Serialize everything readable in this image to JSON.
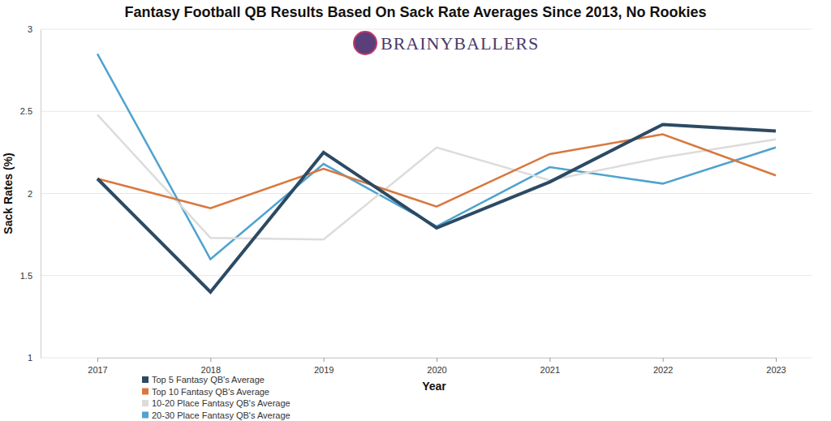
{
  "chart_data": {
    "type": "line",
    "title": "Fantasy Football QB Results Based On Sack Rate Averages Since 2013, No Rookies",
    "subtitle": "BRAINYBALLERS",
    "x_label": "Year",
    "y_label": "Sack Rates (%)",
    "categories": [
      "2017",
      "2018",
      "2019",
      "2020",
      "2021",
      "2022",
      "2023"
    ],
    "series": [
      {
        "name": "Top 5 Fantasy QB's Average",
        "color": "#2c4a63",
        "values": [
          2.09,
          1.4,
          2.25,
          1.79,
          2.07,
          2.42,
          2.38
        ]
      },
      {
        "name": "Top 10 Fantasy QB's Average",
        "color": "#d9773f",
        "values": [
          2.09,
          1.91,
          2.15,
          1.92,
          2.24,
          2.36,
          2.11
        ]
      },
      {
        "name": "10-20 Place Fantasy QB's Average",
        "color": "#dcdcdc",
        "values": [
          2.48,
          1.73,
          1.72,
          2.28,
          2.08,
          2.22,
          2.33
        ]
      },
      {
        "name": "20-30 Place Fantasy QB's Average",
        "color": "#4ea3cf",
        "values": [
          2.85,
          1.6,
          2.18,
          1.8,
          2.16,
          2.06,
          2.28
        ]
      }
    ],
    "ylim": [
      1,
      3
    ],
    "yticks": [
      1,
      1.5,
      2,
      2.5,
      3
    ],
    "grid": true,
    "legend": "bottom-left"
  }
}
